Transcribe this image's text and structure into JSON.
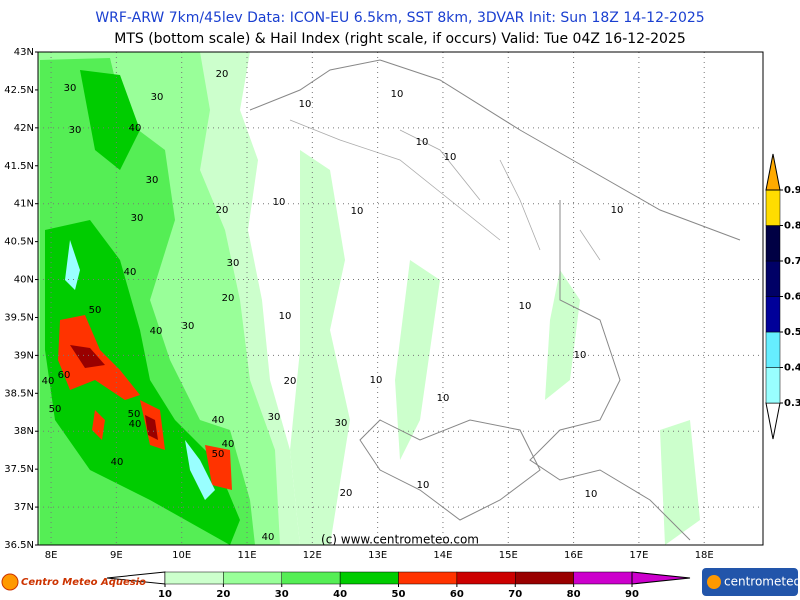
{
  "header": {
    "line1": "WRF-ARW 7km/45lev   Data: ICON-EU 6.5km, SST 8km, 3DVAR   Init: Sun 18Z 14-12-2025",
    "line2": "MTS (bottom scale) & Hail Index (right scale, if occurs) Valid: Tue 04Z 16-12-2025"
  },
  "map": {
    "xlim": [
      7.8,
      18.9
    ],
    "ylim": [
      36.5,
      43
    ],
    "xticks": [
      {
        "value": 8,
        "label": "8E"
      },
      {
        "value": 9,
        "label": "9E"
      },
      {
        "value": 10,
        "label": "10E"
      },
      {
        "value": 11,
        "label": "11E"
      },
      {
        "value": 12,
        "label": "12E"
      },
      {
        "value": 13,
        "label": "13E"
      },
      {
        "value": 14,
        "label": "14E"
      },
      {
        "value": 15,
        "label": "15E"
      },
      {
        "value": 16,
        "label": "16E"
      },
      {
        "value": 17,
        "label": "17E"
      },
      {
        "value": 18,
        "label": "18E"
      }
    ],
    "yticks": [
      {
        "value": 43,
        "label": "43N"
      },
      {
        "value": 42.5,
        "label": "42.5N"
      },
      {
        "value": 42,
        "label": "42N"
      },
      {
        "value": 41.5,
        "label": "41.5N"
      },
      {
        "value": 41,
        "label": "41N"
      },
      {
        "value": 40.5,
        "label": "40.5N"
      },
      {
        "value": 40,
        "label": "40N"
      },
      {
        "value": 39.5,
        "label": "39.5N"
      },
      {
        "value": 39,
        "label": "39N"
      },
      {
        "value": 38.5,
        "label": "38.5N"
      },
      {
        "value": 38,
        "label": "38N"
      },
      {
        "value": 37.5,
        "label": "37.5N"
      },
      {
        "value": 37,
        "label": "37N"
      },
      {
        "value": 36.5,
        "label": "36.5N"
      }
    ],
    "contour_labels": [
      30,
      20,
      30,
      10,
      10,
      30,
      40,
      10,
      10,
      30,
      20,
      10,
      10,
      10,
      30,
      40,
      30,
      20,
      50,
      10,
      10,
      30,
      40,
      10,
      60,
      40,
      20,
      10,
      50,
      50,
      40,
      30,
      10,
      40,
      30,
      40,
      50,
      40,
      20,
      10,
      10,
      40
    ],
    "credit": "(c) www.centrometeo.com"
  },
  "colorbar_bottom": {
    "ticks": [
      10,
      20,
      30,
      40,
      50,
      60,
      70,
      80,
      90
    ],
    "colors": [
      "#ccffcc",
      "#99ff99",
      "#55ee55",
      "#00cc00",
      "#ff3300",
      "#cc0000",
      "#990000",
      "#cc00cc"
    ]
  },
  "colorbar_right": {
    "ticks": [
      0.3,
      0.4,
      0.5,
      0.6,
      0.7,
      0.8,
      0.9
    ],
    "colors": [
      "#99ffff",
      "#66eeff",
      "#000099",
      "#000066",
      "#000044",
      "#ffdd00"
    ]
  },
  "logos": {
    "left": "Centro Meteo Aquesio",
    "right": "centrometeo"
  }
}
